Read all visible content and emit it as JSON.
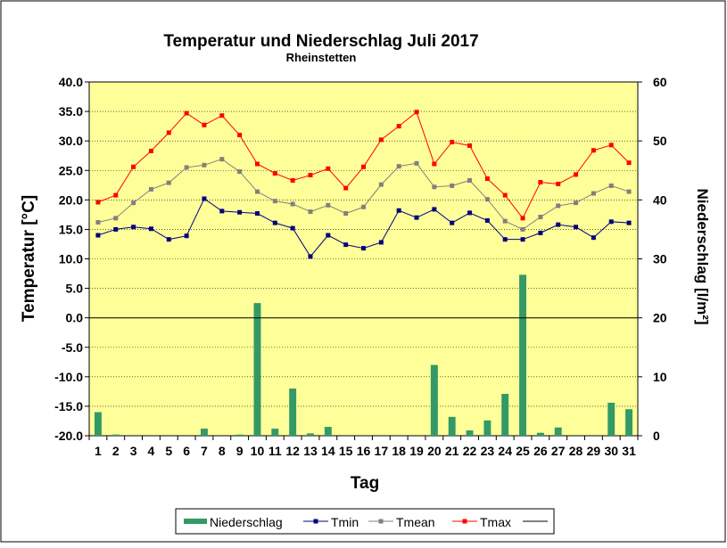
{
  "chart_data": {
    "type": "line",
    "title": "Temperatur und Niederschlag  Juli 2017",
    "subtitle": "Rheinstetten",
    "xlabel": "Tag",
    "ylabel_left": "Temperatur [°C]",
    "ylabel_right": "Niederschlag [l/m²]",
    "categories": [
      "1",
      "2",
      "3",
      "4",
      "5",
      "6",
      "7",
      "8",
      "9",
      "10",
      "11",
      "12",
      "13",
      "14",
      "15",
      "16",
      "17",
      "18",
      "19",
      "20",
      "21",
      "22",
      "23",
      "24",
      "25",
      "26",
      "27",
      "28",
      "29",
      "30",
      "31"
    ],
    "left_axis": {
      "min": -20,
      "max": 40,
      "step": 5,
      "tick_labels": [
        "-20.0",
        "-15.0",
        "-10.0",
        "-5.0",
        "0.0",
        "5.0",
        "10.0",
        "15.0",
        "20.0",
        "25.0",
        "30.0",
        "35.0",
        "40.0"
      ]
    },
    "right_axis": {
      "min": 0,
      "max": 60,
      "step": 10,
      "tick_labels": [
        "0",
        "10",
        "20",
        "30",
        "40",
        "50",
        "60"
      ]
    },
    "grid": true,
    "legend_position": "bottom",
    "legend_entries": [
      "Niederschlag",
      "Tmin",
      "Tmean",
      "Tmax",
      ""
    ],
    "colors": {
      "Niederschlag": "#339966",
      "Tmin": "#000080",
      "Tmean": "#808080",
      "Tmax": "#ff0000",
      "plot_bg": "#ffff99",
      "frame": "#000000"
    },
    "bars": {
      "name": "Niederschlag",
      "axis": "right",
      "values": [
        4.0,
        0.2,
        0,
        0,
        0,
        0,
        1.2,
        0,
        0.2,
        22.5,
        1.2,
        8.0,
        0.4,
        1.5,
        0,
        0,
        0,
        0,
        0,
        12.0,
        3.2,
        0.9,
        2.6,
        7.1,
        27.3,
        0.5,
        1.4,
        0,
        0,
        5.6,
        4.5
      ]
    },
    "series": [
      {
        "name": "Tmin",
        "values": [
          14.0,
          15.0,
          15.4,
          15.1,
          13.3,
          13.9,
          20.2,
          18.1,
          17.9,
          17.7,
          16.1,
          15.2,
          10.4,
          14.0,
          12.4,
          11.8,
          12.8,
          18.2,
          17.0,
          18.4,
          16.1,
          17.8,
          16.5,
          13.3,
          13.3,
          14.4,
          15.8,
          15.4,
          13.6,
          16.3,
          16.1
        ]
      },
      {
        "name": "Tmean",
        "values": [
          16.2,
          16.9,
          19.5,
          21.8,
          22.9,
          25.5,
          25.9,
          26.9,
          24.8,
          21.4,
          19.8,
          19.3,
          18.0,
          19.1,
          17.7,
          18.8,
          22.6,
          25.7,
          26.2,
          22.2,
          22.4,
          23.3,
          20.1,
          16.4,
          15.0,
          17.1,
          19.0,
          19.5,
          21.1,
          22.4,
          21.4
        ]
      },
      {
        "name": "Tmax",
        "values": [
          19.6,
          20.8,
          25.6,
          28.3,
          31.4,
          34.7,
          32.7,
          34.3,
          31.0,
          26.1,
          24.5,
          23.3,
          24.2,
          25.3,
          22.0,
          25.6,
          30.2,
          32.5,
          34.9,
          26.1,
          29.8,
          29.2,
          23.6,
          20.8,
          16.9,
          23.0,
          22.7,
          24.3,
          28.4,
          29.3,
          26.3
        ]
      }
    ]
  }
}
